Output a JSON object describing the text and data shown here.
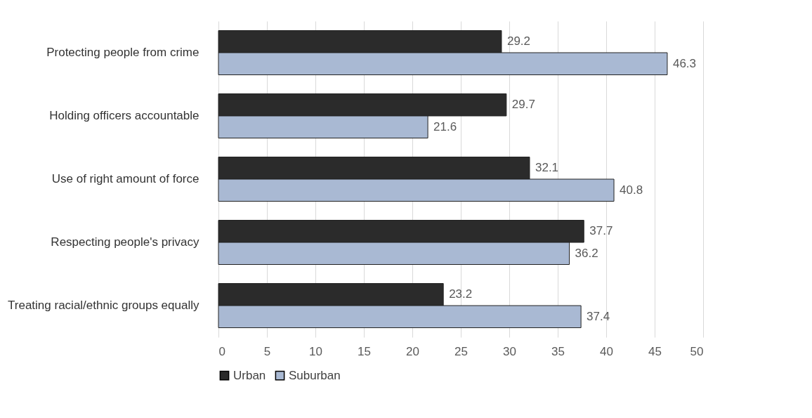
{
  "chart_data": {
    "type": "bar",
    "orientation": "horizontal",
    "categories": [
      "Protecting people from crime",
      "Holding officers accountable",
      "Use of right amount of force",
      "Respecting people's privacy",
      "Treating racial/ethnic groups equally"
    ],
    "series": [
      {
        "name": "Urban",
        "color": "#2b2b2b",
        "values": [
          29.2,
          29.7,
          32.1,
          37.7,
          23.2
        ]
      },
      {
        "name": "Suburban",
        "color": "#a9b9d3",
        "values": [
          46.3,
          21.6,
          40.8,
          36.2,
          37.4
        ]
      }
    ],
    "xlim": [
      0,
      50
    ],
    "xticks": [
      0,
      5,
      10,
      15,
      20,
      25,
      30,
      35,
      40,
      45,
      50
    ],
    "grid": "x",
    "legend": "bottom",
    "data_labels": true
  }
}
